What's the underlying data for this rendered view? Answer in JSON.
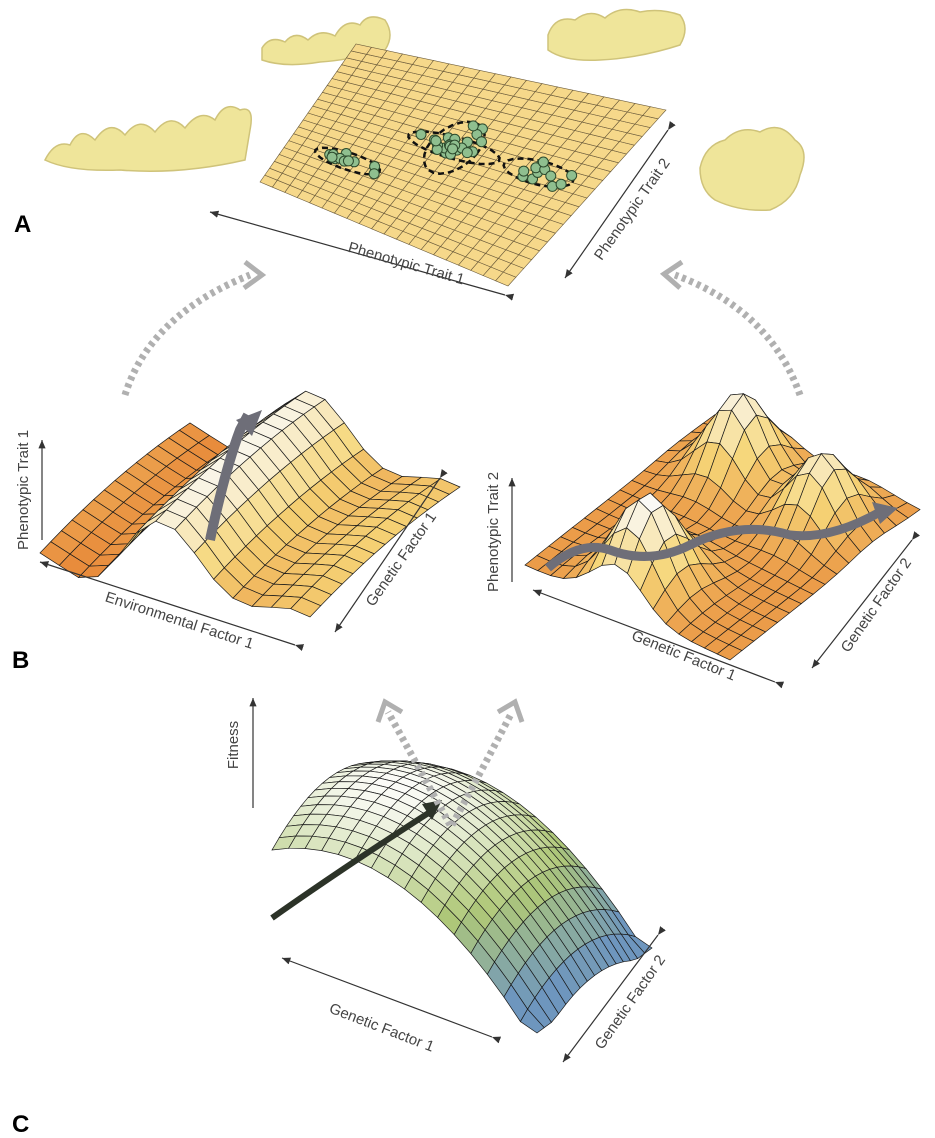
{
  "panel_labels": [
    "A",
    "B",
    "C"
  ],
  "panel_a": {
    "x_axis": "Phenotypic Trait 1",
    "y_axis": "Phenotypic Trait 2"
  },
  "panel_b_left": {
    "vertical_axis": "Phenotypic Trait 1",
    "x_axis": "Environmental Factor 1",
    "y_axis": "Genetic Factor 1"
  },
  "panel_b_right": {
    "vertical_axis": "Phenotypic Trait 2",
    "x_axis": "Genetic Factor 1",
    "y_axis": "Genetic Factor 2"
  },
  "panel_c": {
    "vertical_axis": "Fitness",
    "x_axis": "Genetic Factor 1",
    "y_axis": "Genetic Factor 2"
  }
}
